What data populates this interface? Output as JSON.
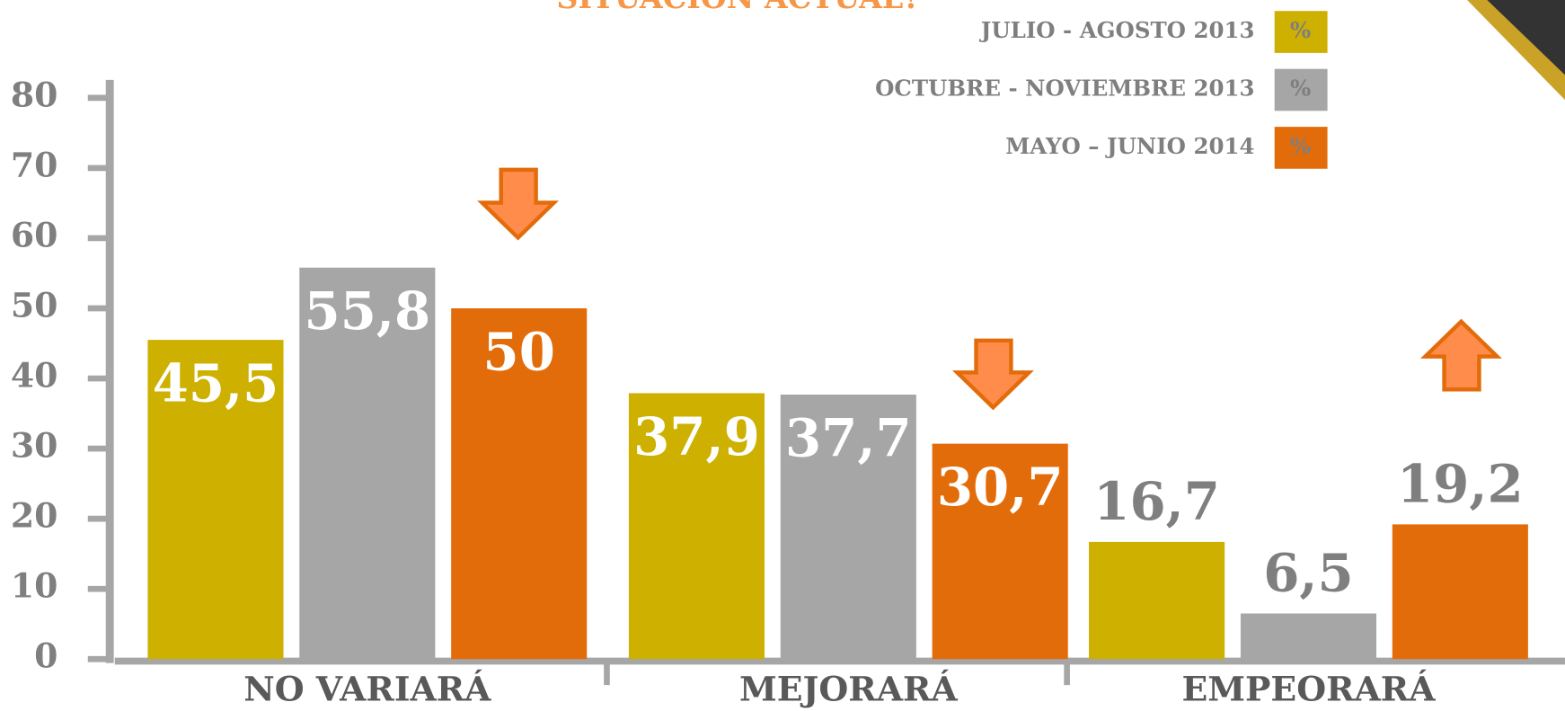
{
  "chart_data": {
    "type": "bar",
    "title": "SITUACIÓN ACTUAL?",
    "categories": [
      "NO  VARIARÁ",
      "MEJORARÁ",
      "EMPEORARÁ"
    ],
    "legend_symbol": "%",
    "series": [
      {
        "name": "JULIO - AGOSTO 2013",
        "color": "#cdb000",
        "values": [
          45.5,
          37.9,
          16.7
        ],
        "value_labels": [
          "45,5",
          "37,9",
          "16,7"
        ]
      },
      {
        "name": "OCTUBRE - NOVIEMBRE 2013",
        "color": "#a6a6a6",
        "values": [
          55.8,
          37.7,
          6.5
        ],
        "value_labels": [
          "55,8",
          "37,7",
          "6,5"
        ]
      },
      {
        "name": "MAYO – JUNIO 2014",
        "color": "#e36c0a",
        "values": [
          50,
          30.7,
          19.2
        ],
        "value_labels": [
          "50",
          "30,7",
          "19,2"
        ]
      }
    ],
    "ylim": [
      0,
      80
    ],
    "yticks": [
      0,
      10,
      20,
      30,
      40,
      50,
      60,
      70,
      80
    ],
    "legend": "upper right"
  }
}
